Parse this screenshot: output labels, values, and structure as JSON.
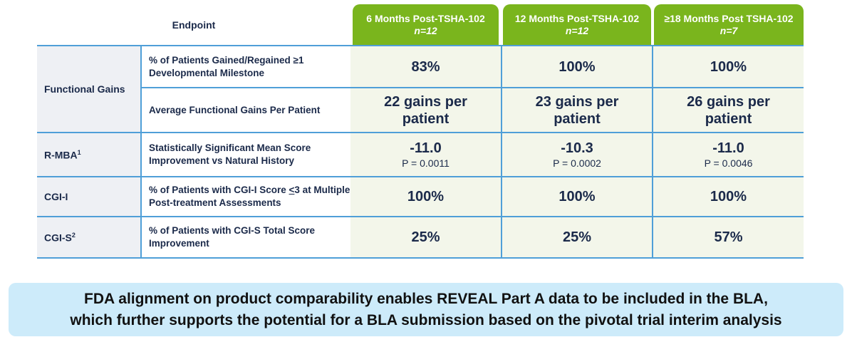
{
  "header": {
    "endpoint_label": "Endpoint",
    "columns": [
      {
        "title": "6 Months Post-TSHA-102",
        "n": "n=12"
      },
      {
        "title": "12 Months Post-TSHA-102",
        "n": "n=12"
      },
      {
        "title": "≥18 Months Post TSHA-102",
        "n": "n=7"
      }
    ]
  },
  "rows": {
    "functional_gains": {
      "group": "Functional Gains",
      "milestone": {
        "metric": "% of Patients Gained/Regained ≥1 Developmental Milestone",
        "values": [
          "83%",
          "100%",
          "100%"
        ]
      },
      "average": {
        "metric": "Average Functional Gains Per Patient",
        "values": [
          "22 gains per patient",
          "23 gains per patient",
          "26 gains per patient"
        ]
      }
    },
    "rmba": {
      "group": "R-MBA",
      "group_sup": "1",
      "metric": "Statistically Significant Mean Score Improvement vs Natural History",
      "values": [
        "-11.0",
        "-10.3",
        "-11.0"
      ],
      "pvalues": [
        "P = 0.0011",
        "P = 0.0002",
        "P = 0.0046"
      ]
    },
    "cgii": {
      "group": "CGI-I",
      "metric_pre": "% of Patients with CGI-I Score ",
      "metric_underlined": "<",
      "metric_post": "3 at Multiple Post-treatment Assessments",
      "values": [
        "100%",
        "100%",
        "100%"
      ]
    },
    "cgis": {
      "group": "CGI-S",
      "group_sup": "2",
      "metric": "% of Patients with CGI-S Total Score Improvement",
      "values": [
        "25%",
        "25%",
        "57%"
      ]
    }
  },
  "banner": {
    "line1": "FDA alignment on product comparability enables REVEAL Part A data to be included in the BLA,",
    "line2": "which further supports the potential for a BLA submission based on the pivotal trial interim analysis"
  },
  "colors": {
    "header_green": "#7ab51d",
    "rule_blue": "#4f9fd8",
    "banner_bg": "#cdebfa",
    "value_bg": "#f3f6ea",
    "group_bg": "#eef0f4",
    "text_navy": "#1b2a4a"
  }
}
